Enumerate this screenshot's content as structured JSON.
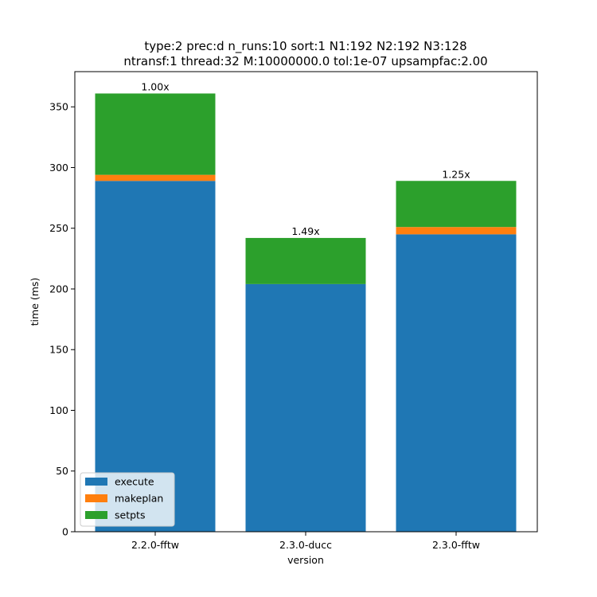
{
  "chart_data": {
    "type": "bar",
    "stacked": true,
    "title_lines": [
      "type:2 prec:d n_runs:10 sort:1 N1:192 N2:192 N3:128",
      "ntransf:1 thread:32 M:10000000.0 tol:1e-07 upsampfac:2.00"
    ],
    "xlabel": "version",
    "ylabel": "time (ms)",
    "categories": [
      "2.2.0-fftw",
      "2.3.0-ducc",
      "2.3.0-fftw"
    ],
    "series": [
      {
        "name": "execute",
        "color": "#1f77b4",
        "values": [
          289,
          204,
          245
        ]
      },
      {
        "name": "makeplan",
        "color": "#ff7f0e",
        "values": [
          5,
          0,
          6
        ]
      },
      {
        "name": "setpts",
        "color": "#2ca02c",
        "values": [
          67,
          38,
          38
        ]
      }
    ],
    "bar_labels": [
      "1.00x",
      "1.49x",
      "1.25x"
    ],
    "ylim": [
      0,
      379
    ],
    "yticks": [
      0,
      50,
      100,
      150,
      200,
      250,
      300,
      350
    ],
    "grid": false,
    "legend_position": "lower-left"
  }
}
